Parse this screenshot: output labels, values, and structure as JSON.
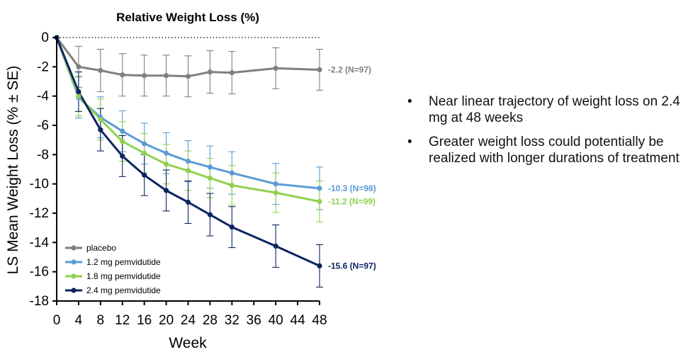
{
  "chart_data": {
    "type": "line",
    "title": "Relative Weight Loss (%)",
    "xlabel": "Week",
    "ylabel": "LS Mean Weight Loss (% ± SE)",
    "x_ticks": [
      0,
      4,
      8,
      12,
      16,
      20,
      24,
      28,
      32,
      36,
      40,
      44,
      48
    ],
    "y_ticks": [
      0,
      -2,
      -4,
      -6,
      -8,
      -10,
      -12,
      -14,
      -16,
      -18
    ],
    "xlim": [
      0,
      48
    ],
    "ylim": [
      -18,
      0
    ],
    "reference_line": {
      "y": 0,
      "style": "dotted"
    },
    "legend_position": "bottom-left",
    "series": [
      {
        "name": "placebo",
        "color": "#808080",
        "x": [
          0,
          4,
          8,
          12,
          16,
          20,
          24,
          28,
          32,
          40,
          48
        ],
        "y": [
          0,
          -2.0,
          -2.25,
          -2.55,
          -2.6,
          -2.6,
          -2.65,
          -2.35,
          -2.4,
          -2.1,
          -2.2
        ],
        "se": [
          0,
          1.4,
          1.45,
          1.45,
          1.4,
          1.4,
          1.4,
          1.45,
          1.45,
          1.4,
          1.4
        ],
        "end_label": "-2.2 (N=97)"
      },
      {
        "name": "1.2 mg pemvidutide",
        "color": "#5b9bd5",
        "x": [
          0,
          4,
          8,
          12,
          16,
          20,
          24,
          28,
          32,
          40,
          48
        ],
        "y": [
          0,
          -4.1,
          -5.45,
          -6.4,
          -7.25,
          -7.9,
          -8.45,
          -8.85,
          -9.25,
          -10.0,
          -10.3
        ],
        "se": [
          0,
          1.4,
          1.4,
          1.4,
          1.4,
          1.4,
          1.4,
          1.45,
          1.45,
          1.4,
          1.45
        ],
        "end_label": "-10.3 (N=98)"
      },
      {
        "name": "1.8 mg pemvidutide",
        "color": "#92d050",
        "x": [
          0,
          4,
          8,
          12,
          16,
          20,
          24,
          28,
          32,
          40,
          48
        ],
        "y": [
          0,
          -4.0,
          -5.6,
          -7.1,
          -7.9,
          -8.65,
          -9.1,
          -9.6,
          -10.1,
          -10.6,
          -11.2
        ],
        "se": [
          0,
          1.35,
          1.4,
          1.35,
          1.35,
          1.35,
          1.35,
          1.35,
          1.35,
          1.35,
          1.4
        ],
        "end_label": "-11.2 (N=99)"
      },
      {
        "name": "2.4 mg pemvidutide",
        "color": "#0c2461",
        "x": [
          0,
          4,
          8,
          12,
          16,
          20,
          24,
          28,
          32,
          40,
          48
        ],
        "y": [
          0,
          -3.7,
          -6.3,
          -8.1,
          -9.4,
          -10.45,
          -11.25,
          -12.1,
          -12.95,
          -14.25,
          -15.6
        ],
        "se": [
          0,
          1.35,
          1.45,
          1.4,
          1.4,
          1.4,
          1.45,
          1.45,
          1.4,
          1.45,
          1.45
        ],
        "end_label": "-15.6 (N=97)"
      }
    ]
  },
  "bullets": {
    "items": [
      "Near linear trajectory of weight loss on 2.4 mg at 48 weeks",
      "Greater weight loss could potentially be realized with longer durations of treatment"
    ],
    "marker": "•"
  }
}
